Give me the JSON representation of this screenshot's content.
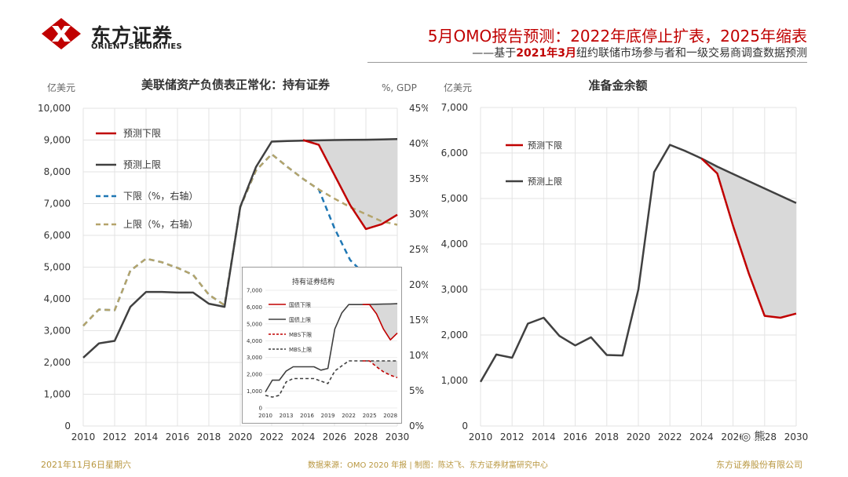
{
  "header": {
    "logo_cn": "东方证券",
    "logo_en": "ORIENT SECURITIES",
    "headline": "5月OMO报告预测：2022年底停止扩表，2025年缩表",
    "subline_pre": "——基于",
    "subline_highlight": "2021年3月",
    "subline_post": "纽约联储市场参与者和一级交易商调查数据预测"
  },
  "footer": {
    "date": "2021年11月6日星期六",
    "source": "数据来源：OMO 2020 年报 | 制图：陈达飞、东方证券财富研究中心",
    "company": "东方证券股份有限公司"
  },
  "watermark": {
    "text": "熊"
  },
  "colors": {
    "red": "#c00000",
    "dark": "#404040",
    "blue": "#1f77b4",
    "khaki": "#b5a46b",
    "shade": "#d9d9d9"
  },
  "chart_data": [
    {
      "type": "line",
      "title": "美联储资产负债表正常化：持有证券",
      "ylabel_left": "亿美元",
      "ylabel_right": "%, GDP",
      "x": [
        2010,
        2011,
        2012,
        2013,
        2014,
        2015,
        2016,
        2017,
        2018,
        2019,
        2020,
        2021,
        2022,
        2023,
        2024,
        2025,
        2026,
        2027,
        2028,
        2029,
        2030
      ],
      "xticks": [
        2010,
        2012,
        2014,
        2016,
        2018,
        2020,
        2022,
        2024,
        2026,
        2028,
        2030
      ],
      "ylim_left": [
        0,
        10000
      ],
      "yticks_left": [
        "0",
        "1,000",
        "2,000",
        "3,000",
        "4,000",
        "5,000",
        "6,000",
        "7,000",
        "8,000",
        "9,000",
        "10,000"
      ],
      "ylim_right": [
        0,
        45
      ],
      "yticks_right": [
        "0%",
        "5%",
        "10%",
        "15%",
        "20%",
        "25%",
        "30%",
        "35%",
        "40%",
        "45%"
      ],
      "series": [
        {
          "name": "预测下限",
          "axis": "left",
          "style": "solid",
          "color": "#c00000",
          "values": [
            null,
            null,
            null,
            null,
            null,
            null,
            null,
            null,
            null,
            null,
            null,
            null,
            null,
            null,
            9000,
            8850,
            7900,
            6950,
            6200,
            6350,
            6650
          ]
        },
        {
          "name": "预测上限",
          "axis": "left",
          "style": "solid",
          "color": "#404040",
          "values": [
            2150,
            2600,
            2680,
            3750,
            4220,
            4220,
            4200,
            4200,
            3850,
            3750,
            6900,
            8150,
            8950,
            8970,
            8980,
            8990,
            9000,
            9005,
            9010,
            9020,
            9030
          ]
        },
        {
          "name": "下限（%，右轴）",
          "axis": "right",
          "style": "dashed",
          "color": "#1f77b4",
          "values": [
            14.2,
            16.5,
            16.4,
            22.0,
            23.7,
            23.2,
            22.4,
            21.4,
            18.6,
            17.1,
            31.0,
            36.2,
            38.5,
            36.7,
            35.0,
            33.5,
            28.0,
            23.5,
            21.3,
            21.0,
            21.0
          ]
        },
        {
          "name": "上限（%，右轴）",
          "axis": "right",
          "style": "dashed",
          "color": "#b5a46b",
          "values": [
            14.2,
            16.5,
            16.4,
            22.0,
            23.7,
            23.2,
            22.4,
            21.4,
            18.6,
            17.1,
            31.0,
            36.2,
            38.5,
            36.7,
            35.0,
            33.5,
            32.2,
            31.0,
            30.0,
            29.0,
            28.5
          ]
        }
      ]
    },
    {
      "type": "line",
      "title": "持有证券结构",
      "x": [
        2010,
        2011,
        2012,
        2013,
        2014,
        2015,
        2016,
        2017,
        2018,
        2019,
        2020,
        2021,
        2022,
        2023,
        2024,
        2025,
        2026,
        2027,
        2028,
        2029
      ],
      "xticks": [
        2010,
        2013,
        2016,
        2019,
        2022,
        2025,
        2028
      ],
      "ylim": [
        0,
        7000
      ],
      "yticks": [
        "0",
        "1,000",
        "2,000",
        "3,000",
        "4,000",
        "5,000",
        "6,000",
        "7,000"
      ],
      "series": [
        {
          "name": "国债下限",
          "style": "solid",
          "color": "#c00000",
          "values": [
            null,
            null,
            null,
            null,
            null,
            null,
            null,
            null,
            null,
            null,
            null,
            null,
            null,
            null,
            6150,
            6150,
            5600,
            4700,
            4050,
            4450
          ]
        },
        {
          "name": "国债上限",
          "style": "solid",
          "color": "#404040",
          "values": [
            950,
            1650,
            1650,
            2200,
            2450,
            2450,
            2450,
            2450,
            2250,
            2350,
            4700,
            5650,
            6150,
            6150,
            6150,
            6160,
            6170,
            6180,
            6190,
            6200
          ]
        },
        {
          "name": "MBS下限",
          "style": "dashed",
          "color": "#c00000",
          "values": [
            null,
            null,
            null,
            null,
            null,
            null,
            null,
            null,
            null,
            null,
            null,
            null,
            null,
            null,
            2800,
            2800,
            2450,
            2150,
            1950,
            1800
          ]
        },
        {
          "name": "MBS上限",
          "style": "dashed",
          "color": "#404040",
          "values": [
            750,
            650,
            750,
            1550,
            1750,
            1750,
            1750,
            1750,
            1600,
            1450,
            2200,
            2500,
            2800,
            2800,
            2800,
            2800,
            2800,
            2800,
            2800,
            2800
          ]
        }
      ]
    },
    {
      "type": "line",
      "title": "准备金余额",
      "ylabel": "亿美元",
      "x": [
        2010,
        2011,
        2012,
        2013,
        2014,
        2015,
        2016,
        2017,
        2018,
        2019,
        2020,
        2021,
        2022,
        2023,
        2024,
        2025,
        2026,
        2027,
        2028,
        2029,
        2030
      ],
      "xticks": [
        2010,
        2012,
        2014,
        2016,
        2018,
        2020,
        2022,
        2024,
        2026,
        2028,
        2030
      ],
      "ylim": [
        0,
        7000
      ],
      "yticks": [
        "0",
        "1,000",
        "2,000",
        "3,000",
        "4,000",
        "5,000",
        "6,000",
        "7,000"
      ],
      "series": [
        {
          "name": "预测下限",
          "style": "solid",
          "color": "#c00000",
          "values": [
            null,
            null,
            null,
            null,
            null,
            null,
            null,
            null,
            null,
            null,
            null,
            null,
            null,
            null,
            5880,
            5550,
            4400,
            3350,
            2420,
            2380,
            2470
          ]
        },
        {
          "name": "预测上限",
          "style": "solid",
          "color": "#404040",
          "values": [
            970,
            1570,
            1500,
            2250,
            2380,
            1980,
            1770,
            1950,
            1560,
            1550,
            3000,
            5580,
            6180,
            6040,
            5880,
            5700,
            5540,
            5380,
            5220,
            5060,
            4900
          ]
        }
      ]
    }
  ]
}
